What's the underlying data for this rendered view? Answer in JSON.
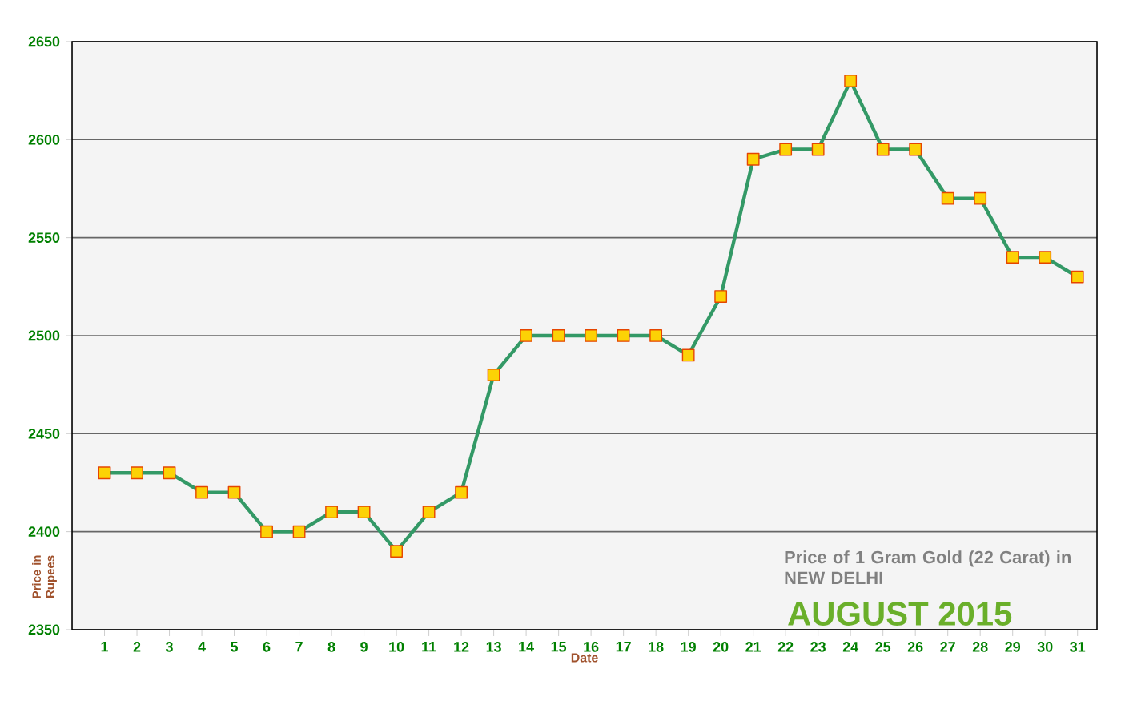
{
  "chart_data": {
    "type": "line",
    "title": "Price of 1 Gram Gold (22 Carat) in NEW DELHI",
    "subtitle": "AUGUST 2015",
    "xlabel": "Date",
    "ylabel": "Price in Rupees",
    "categories": [
      "1",
      "2",
      "3",
      "4",
      "5",
      "6",
      "7",
      "8",
      "9",
      "10",
      "11",
      "12",
      "13",
      "14",
      "15",
      "16",
      "17",
      "18",
      "19",
      "20",
      "21",
      "22",
      "23",
      "24",
      "25",
      "26",
      "27",
      "28",
      "29",
      "30",
      "31"
    ],
    "series": [
      {
        "color": "#339966",
        "values": [
          2430,
          2430,
          2430,
          2420,
          2420,
          2400,
          2400,
          2410,
          2410,
          2390,
          2410,
          2420,
          2480,
          2500,
          2500,
          2500,
          2500,
          2500,
          2490,
          2520,
          2590,
          2595,
          2595,
          2630,
          2595,
          2595,
          2570,
          2570,
          2540,
          2540,
          2530
        ]
      }
    ],
    "ylim": [
      2350,
      2650
    ],
    "yticks": [
      2350,
      2400,
      2450,
      2500,
      2550,
      2600,
      2650
    ],
    "grid": "y",
    "marker": "square",
    "line_style": "solid"
  }
}
